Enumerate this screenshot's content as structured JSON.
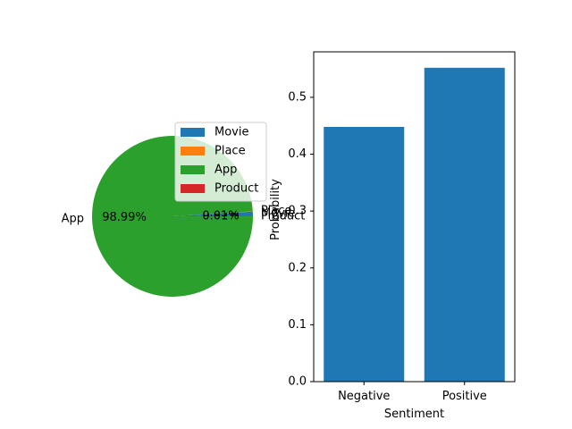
{
  "chart_data": [
    {
      "type": "pie",
      "labels": [
        "Movie",
        "Place",
        "App",
        "Product"
      ],
      "values": [
        0.95,
        0.05,
        98.99,
        0.01
      ],
      "pct_labels": [
        "0.95%",
        "0.05%",
        "98.99%",
        "0.01%"
      ],
      "colors": [
        "#1f77b4",
        "#ff7f0e",
        "#2ca02c",
        "#d62728"
      ],
      "legend_position": "upper-right",
      "start_angle_deg": 0
    },
    {
      "type": "bar",
      "categories": [
        "Negative",
        "Positive"
      ],
      "values": [
        0.448,
        0.552
      ],
      "xlabel": "Sentiment",
      "ylabel": "Probability",
      "ylim": [
        0,
        0.58
      ],
      "yticks": [
        0.0,
        0.1,
        0.2,
        0.3,
        0.4,
        0.5
      ],
      "ytick_labels": [
        "0.0",
        "0.1",
        "0.2",
        "0.3",
        "0.4",
        "0.5"
      ],
      "color": "#1f77b4"
    }
  ]
}
